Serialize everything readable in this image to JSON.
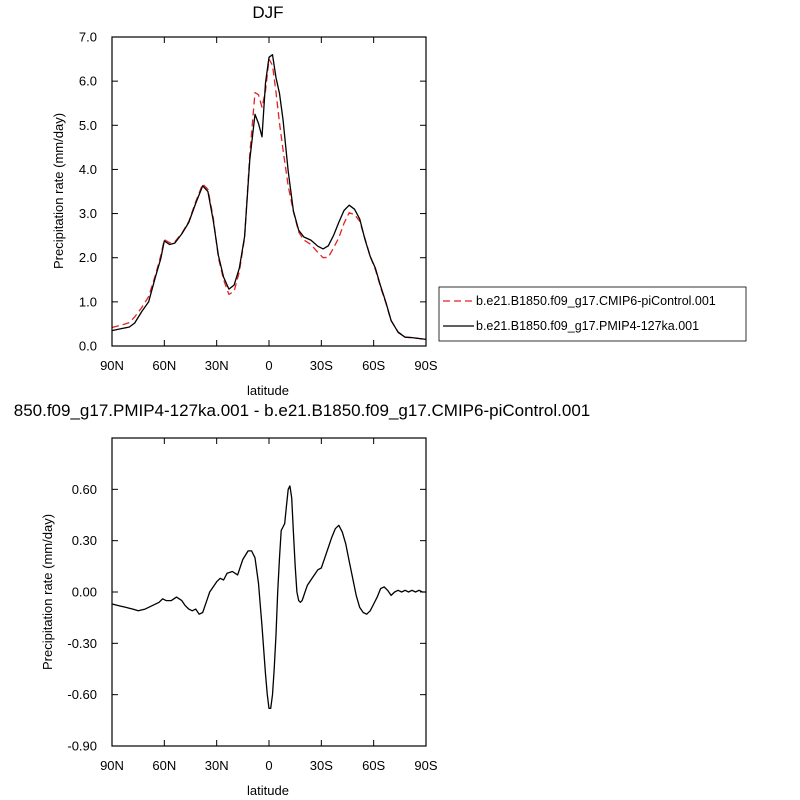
{
  "chart_data": [
    {
      "type": "line",
      "title": "DJF",
      "xlabel": "latitude",
      "ylabel": "Precipitation rate (mm/day)",
      "x_range": [
        90,
        -90
      ],
      "x_ticks": [
        90,
        60,
        30,
        0,
        -30,
        -60,
        -90
      ],
      "x_tick_labels": [
        "90N",
        "60N",
        "30N",
        "0",
        "30S",
        "60S",
        "90S"
      ],
      "ylim": [
        0,
        7
      ],
      "y_ticks": [
        0,
        1,
        2,
        3,
        4,
        5,
        6,
        7
      ],
      "y_tick_labels": [
        "0.0",
        "1.0",
        "2.0",
        "3.0",
        "4.0",
        "5.0",
        "6.0",
        "7.0"
      ],
      "legend_position": "right",
      "series": [
        {
          "name": "b.e21.B1850.f09_g17.CMIP6-piControl.001",
          "color": "#e32222",
          "dash": "dashed",
          "x": [
            90,
            85,
            80,
            77,
            73,
            69,
            65,
            62,
            60,
            57,
            54,
            50,
            46,
            42,
            38,
            35,
            32,
            29,
            26,
            23,
            20,
            17,
            14,
            11,
            8,
            6,
            4,
            2,
            0,
            -2,
            -4,
            -6,
            -8,
            -11,
            -14,
            -17,
            -20,
            -24,
            -28,
            -31,
            -34,
            -37,
            -40,
            -43,
            -46,
            -49,
            -52,
            -55,
            -58,
            -61,
            -64,
            -67,
            -70,
            -74,
            -78,
            -82,
            -86,
            -90
          ],
          "y": [
            0.42,
            0.47,
            0.53,
            0.66,
            0.87,
            1.12,
            1.62,
            2.05,
            2.41,
            2.34,
            2.36,
            2.55,
            2.82,
            3.27,
            3.67,
            3.55,
            2.91,
            2.0,
            1.5,
            1.17,
            1.24,
            1.68,
            2.45,
            4.35,
            5.74,
            5.69,
            5.41,
            5.78,
            6.5,
            6.36,
            5.75,
            5.05,
            4.45,
            3.62,
            3.05,
            2.58,
            2.4,
            2.3,
            2.12,
            2.0,
            2.01,
            2.22,
            2.45,
            2.78,
            3.02,
            2.98,
            2.83,
            2.44,
            2.03,
            1.73,
            1.33,
            0.97,
            0.57,
            0.32,
            0.2,
            0.19,
            0.17,
            0.15
          ]
        },
        {
          "name": "b.e21.B1850.f09_g17.PMIP4-127ka.001",
          "color": "#000000",
          "dash": "solid",
          "x": [
            90,
            85,
            80,
            77,
            73,
            69,
            65,
            62,
            60,
            57,
            54,
            50,
            46,
            42,
            38,
            35,
            32,
            29,
            26,
            23,
            20,
            17,
            14,
            11,
            8,
            6,
            4,
            2,
            0,
            -2,
            -4,
            -6,
            -8,
            -11,
            -14,
            -17,
            -20,
            -24,
            -28,
            -31,
            -34,
            -37,
            -40,
            -43,
            -46,
            -49,
            -52,
            -55,
            -58,
            -61,
            -64,
            -67,
            -70,
            -74,
            -78,
            -82,
            -86,
            -90
          ],
          "y": [
            0.35,
            0.39,
            0.43,
            0.52,
            0.78,
            1.0,
            1.58,
            1.98,
            2.38,
            2.3,
            2.33,
            2.54,
            2.8,
            3.23,
            3.63,
            3.5,
            2.85,
            2.05,
            1.56,
            1.29,
            1.38,
            1.76,
            2.48,
            4.22,
            5.25,
            5.04,
            4.74,
            5.96,
            6.54,
            6.6,
            6.08,
            5.72,
            5.13,
            3.96,
            3.06,
            2.62,
            2.47,
            2.4,
            2.26,
            2.2,
            2.27,
            2.5,
            2.8,
            3.07,
            3.19,
            3.1,
            2.88,
            2.42,
            2.03,
            1.76,
            1.36,
            0.99,
            0.58,
            0.31,
            0.2,
            0.19,
            0.17,
            0.15
          ]
        }
      ]
    },
    {
      "type": "line",
      "title": "850.f09_g17.PMIP4-127ka.001 - b.e21.B1850.f09_g17.CMIP6-piControl.001",
      "xlabel": "latitude",
      "ylabel": "Precipitation rate (mm/day)",
      "x_range": [
        90,
        -90
      ],
      "x_ticks": [
        90,
        60,
        30,
        0,
        -30,
        -60,
        -90
      ],
      "x_tick_labels": [
        "90N",
        "60N",
        "30N",
        "0",
        "30S",
        "60S",
        "90S"
      ],
      "ylim": [
        -0.9,
        0.9
      ],
      "y_ticks": [
        -0.9,
        -0.6,
        -0.3,
        0.0,
        0.3,
        0.6
      ],
      "y_tick_labels": [
        "-0.90",
        "-0.60",
        "-0.30",
        "0.00",
        "0.30",
        "0.60"
      ],
      "series": [
        {
          "name": "",
          "color": "#000000",
          "dash": "solid",
          "x": [
            90,
            86,
            82,
            78,
            75,
            71,
            67,
            63,
            61,
            59,
            56,
            53,
            50,
            48,
            46,
            44,
            42,
            40,
            38,
            36,
            34,
            32,
            30,
            28,
            26,
            24,
            21,
            18,
            15,
            12,
            10,
            8,
            6,
            4,
            2,
            1,
            0,
            -1,
            -2,
            -3,
            -4,
            -5,
            -6,
            -7,
            -8,
            -9,
            -10,
            -11,
            -12,
            -13,
            -14,
            -15,
            -16,
            -17,
            -18,
            -19,
            -20,
            -21,
            -22,
            -24,
            -26,
            -28,
            -30,
            -32,
            -34,
            -36,
            -38,
            -40,
            -42,
            -44,
            -46,
            -48,
            -50,
            -52,
            -54,
            -56,
            -58,
            -60,
            -62,
            -64,
            -66,
            -68,
            -70,
            -72,
            -74,
            -76,
            -78,
            -80,
            -82,
            -84,
            -86,
            -88,
            -90
          ],
          "y": [
            -0.07,
            -0.08,
            -0.09,
            -0.1,
            -0.11,
            -0.1,
            -0.08,
            -0.06,
            -0.04,
            -0.05,
            -0.05,
            -0.03,
            -0.05,
            -0.08,
            -0.1,
            -0.11,
            -0.1,
            -0.13,
            -0.12,
            -0.06,
            0.0,
            0.03,
            0.06,
            0.08,
            0.07,
            0.11,
            0.12,
            0.1,
            0.19,
            0.24,
            0.24,
            0.2,
            0.05,
            -0.2,
            -0.48,
            -0.6,
            -0.68,
            -0.68,
            -0.6,
            -0.45,
            -0.25,
            0.0,
            0.2,
            0.36,
            0.38,
            0.4,
            0.5,
            0.6,
            0.62,
            0.55,
            0.35,
            0.15,
            0.0,
            -0.05,
            -0.06,
            -0.05,
            -0.02,
            0.01,
            0.04,
            0.07,
            0.1,
            0.13,
            0.14,
            0.2,
            0.26,
            0.32,
            0.37,
            0.39,
            0.35,
            0.28,
            0.18,
            0.08,
            -0.02,
            -0.09,
            -0.12,
            -0.13,
            -0.11,
            -0.07,
            -0.03,
            0.02,
            0.03,
            0.01,
            -0.02,
            0.0,
            0.01,
            0.0,
            0.01,
            0.0,
            0.01,
            0.0,
            0.01,
            0.0,
            0.0
          ]
        }
      ]
    }
  ]
}
